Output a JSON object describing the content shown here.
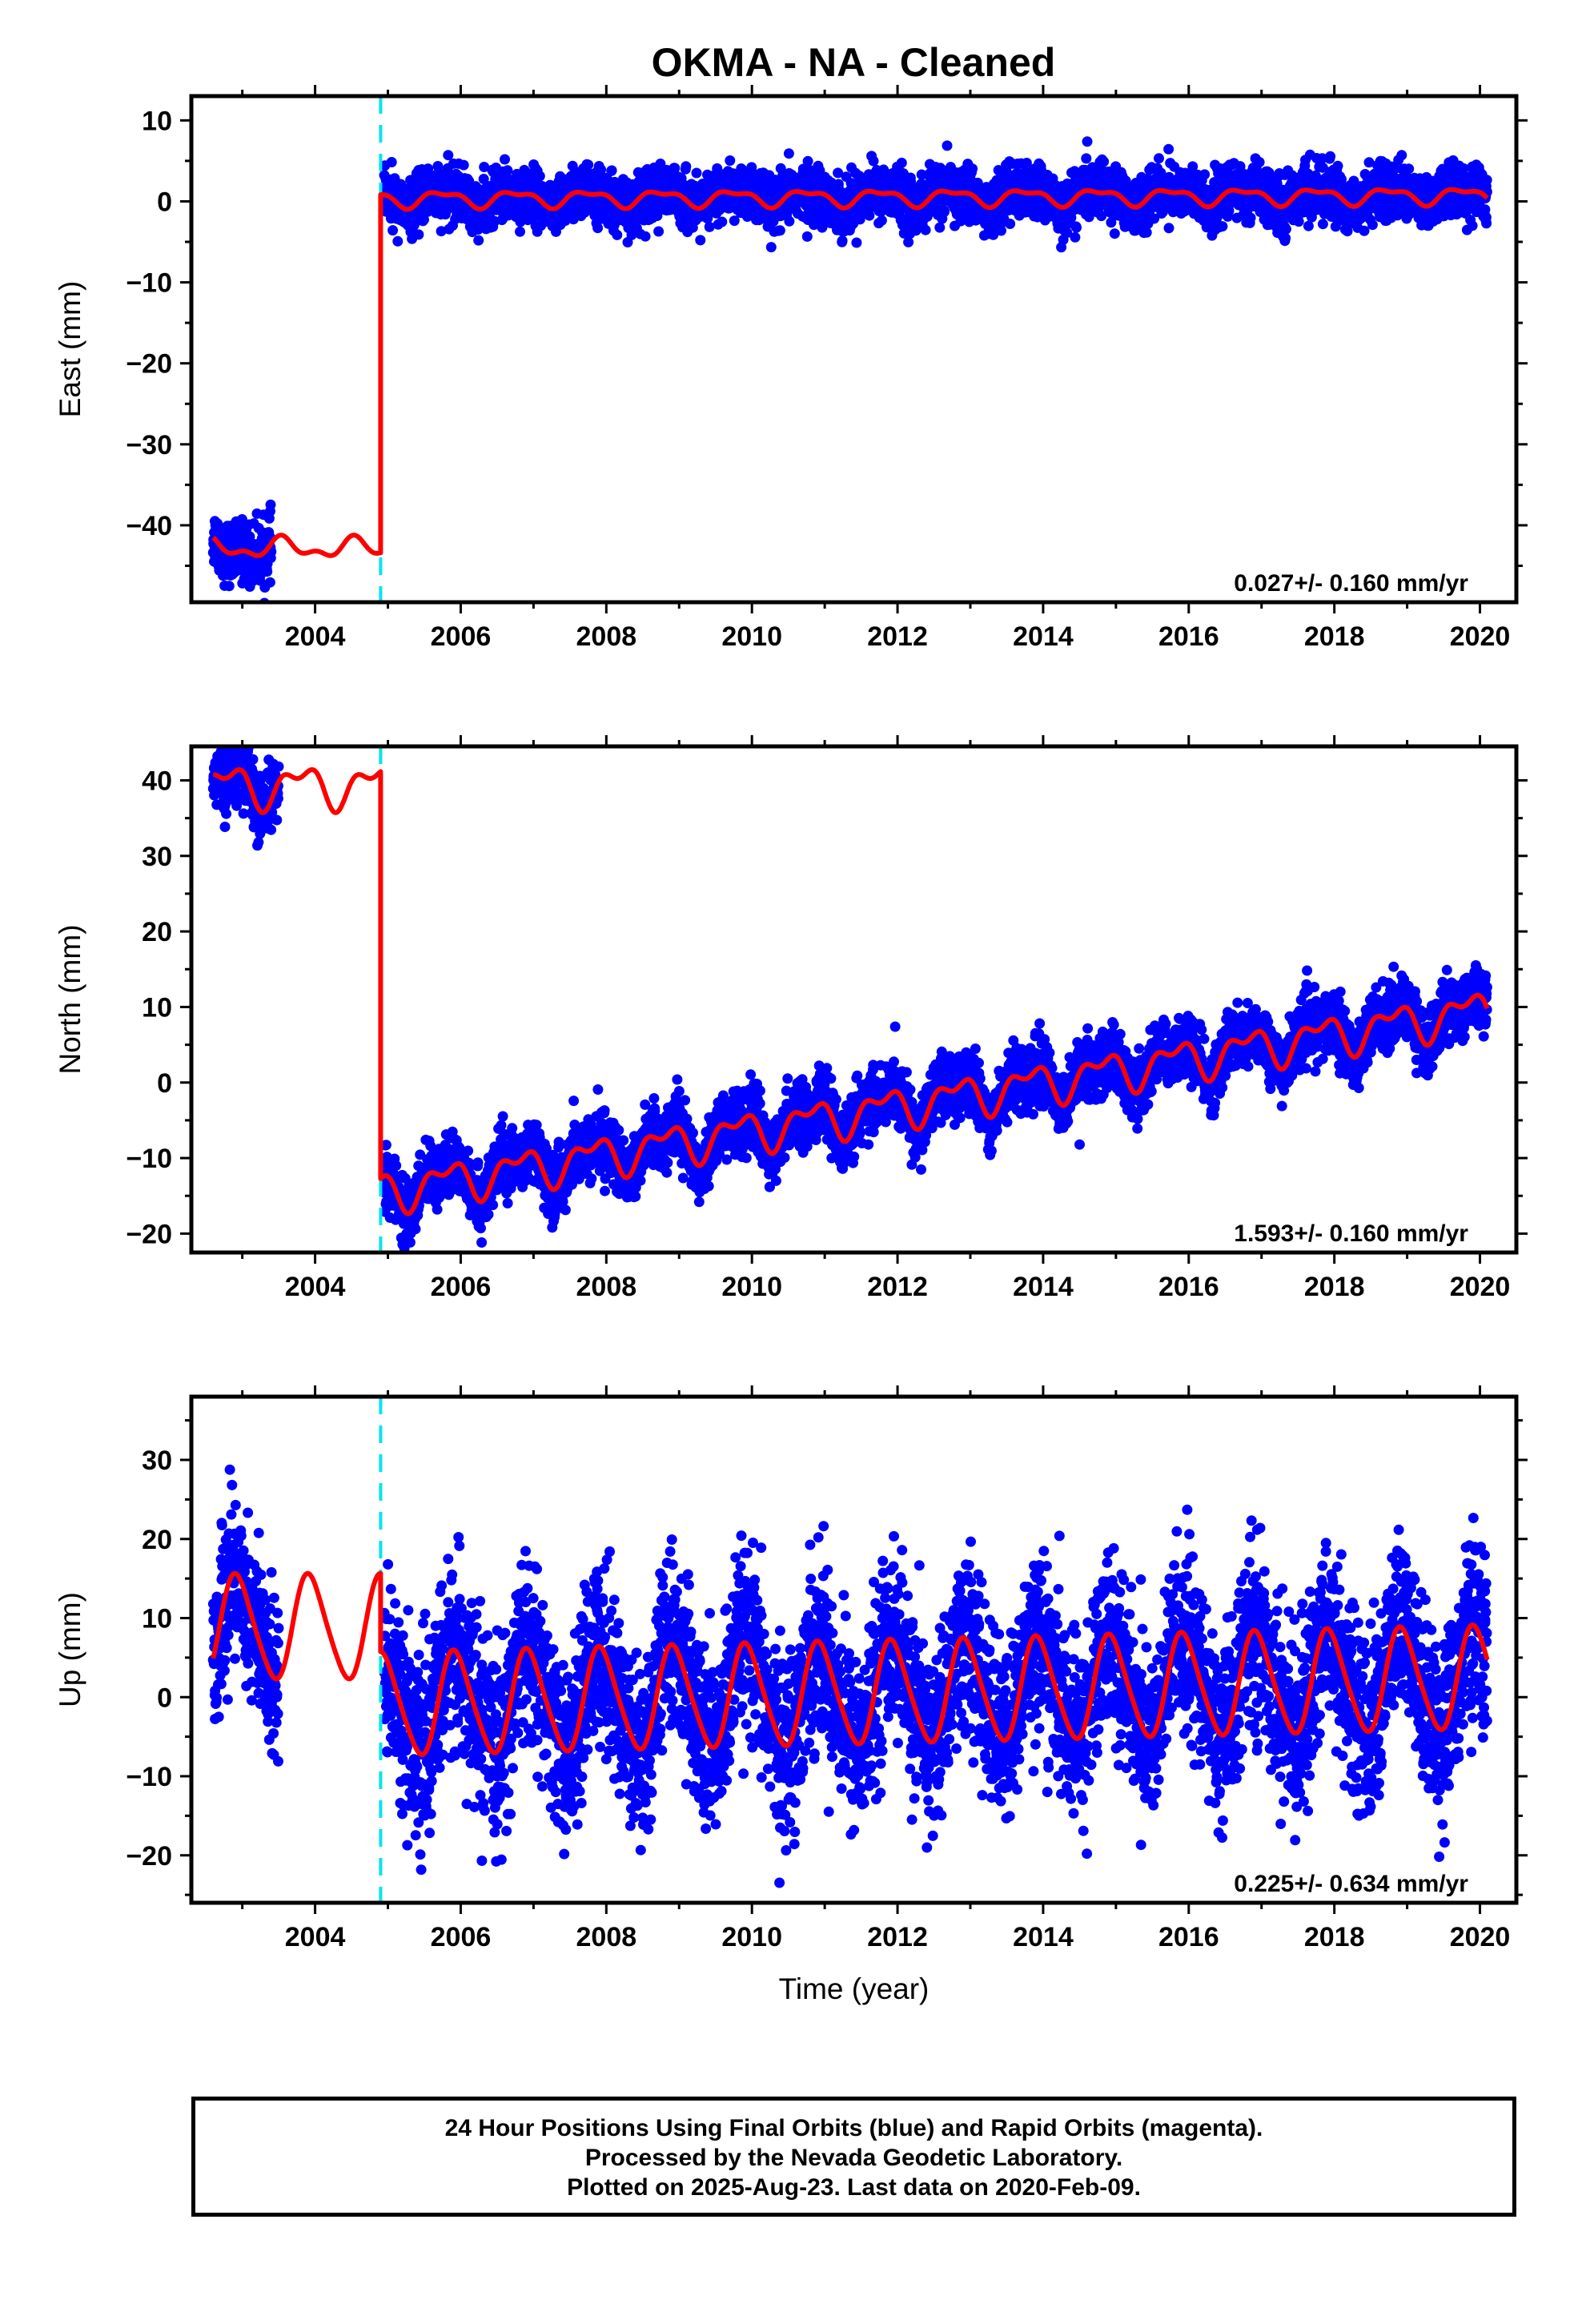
{
  "colors": {
    "data": "#0000ff",
    "model": "#ff0000",
    "offset": "#00e5ee",
    "frame": "#000000"
  },
  "chart_data": [
    {
      "type": "scatter",
      "title": "OKMA  - NA - Cleaned",
      "xlabel": "",
      "ylabel": "East (mm)",
      "xlim": [
        2002.3,
        2020.5
      ],
      "ylim": [
        -49.5,
        13
      ],
      "xticks": [
        2004,
        2006,
        2008,
        2010,
        2012,
        2014,
        2016,
        2018,
        2020
      ],
      "yticks": [
        10,
        0,
        -10,
        -20,
        -30,
        -40
      ],
      "offset_epochs": [
        2004.9
      ],
      "rate_text": "0.027+/- 0.160 mm/yr",
      "model": {
        "before": {
          "start": 2002.6,
          "end": 2004.9,
          "mean": -42.8,
          "annual_amp": 1.0,
          "annual_phase": 0.3,
          "semi_amp": 0.6,
          "semi_phase": 0.9,
          "rate": 0.0
        },
        "after": {
          "start": 2004.9,
          "end": 2020.1,
          "mean": 0.3,
          "annual_amp": 0.9,
          "annual_phase": 0.5,
          "semi_amp": 0.4,
          "semi_phase": 0.9,
          "rate": 0.027
        }
      },
      "data_segments": [
        {
          "start": 2002.6,
          "end": 2003.4,
          "mean": -42.5,
          "spread": 1.8
        },
        {
          "start": 2004.95,
          "end": 2020.1,
          "mean": 0.0,
          "spread": 1.6
        }
      ]
    },
    {
      "type": "scatter",
      "title": "",
      "xlabel": "",
      "ylabel": "North (mm)",
      "xlim": [
        2002.3,
        2020.5
      ],
      "ylim": [
        -22.5,
        44.5
      ],
      "xticks": [
        2004,
        2006,
        2008,
        2010,
        2012,
        2014,
        2016,
        2018,
        2020
      ],
      "yticks": [
        40,
        30,
        20,
        10,
        0,
        -10,
        -20
      ],
      "offset_epochs": [
        2004.9
      ],
      "rate_text": "1.593+/- 0.160 mm/yr",
      "model": {
        "before": {
          "start": 2002.6,
          "end": 2004.9,
          "mean": 39.3,
          "annual_amp": 2.3,
          "annual_phase": 0.55,
          "semi_amp": 1.3,
          "semi_phase": 0.9,
          "rate": 0.0
        },
        "after": {
          "start": 2004.9,
          "end": 2020.1,
          "mean": -14.5,
          "annual_amp": 2.2,
          "annual_phase": 0.55,
          "semi_amp": 1.3,
          "semi_phase": 0.9,
          "rate": 1.593
        }
      },
      "data_segments": [
        {
          "start": 2002.6,
          "end": 2003.5,
          "mean": 37.0,
          "spread": 2.2
        },
        {
          "start": 2004.95,
          "end": 2020.1,
          "mean": -16.0,
          "spread": 2.0
        }
      ]
    },
    {
      "type": "scatter",
      "title": "",
      "xlabel": "Time (year)",
      "ylabel": "Up (mm)",
      "xlim": [
        2002.3,
        2020.5
      ],
      "ylim": [
        -26,
        38
      ],
      "xticks": [
        2004,
        2006,
        2008,
        2010,
        2012,
        2014,
        2016,
        2018,
        2020
      ],
      "yticks": [
        30,
        20,
        10,
        0,
        -10,
        -20
      ],
      "offset_epochs": [
        2004.9
      ],
      "rate_text": "0.225+/- 0.634 mm/yr",
      "model": {
        "before": {
          "start": 2002.6,
          "end": 2004.9,
          "mean": 8.8,
          "annual_amp": 6.5,
          "annual_phase": 0.68,
          "semi_amp": 0.8,
          "semi_phase": 0.2,
          "rate": 0.0
        },
        "after": {
          "start": 2004.9,
          "end": 2020.1,
          "mean": -1.0,
          "annual_amp": 6.4,
          "annual_phase": 0.68,
          "semi_amp": 0.8,
          "semi_phase": 0.2,
          "rate": 0.225
        }
      },
      "data_segments": [
        {
          "start": 2002.6,
          "end": 2003.5,
          "mean": 8.0,
          "spread": 5.0
        },
        {
          "start": 2004.95,
          "end": 2020.1,
          "mean": 0.0,
          "spread": 5.5
        }
      ]
    }
  ],
  "footer": {
    "line1": "24 Hour Positions Using Final Orbits (blue) and Rapid Orbits (magenta).",
    "line2": "Processed by the Nevada Geodetic Laboratory.",
    "line3": "Plotted on 2025-Aug-23. Last data on 2020-Feb-09."
  }
}
